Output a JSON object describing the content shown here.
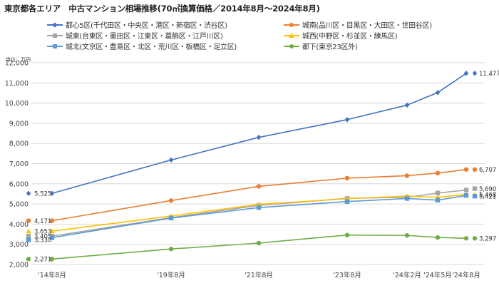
{
  "title": "東京都各エリア　中古マンション相場推移(70㎡換算価格／2014年8月～2024年8月)",
  "unit_label": "単位：万円",
  "colors": {
    "grid": "#d9d9d9",
    "axis": "#bfbfbf"
  },
  "chart_data": {
    "type": "line",
    "title": "東京都各エリア　中古マンション相場推移(70㎡換算価格／2014年8月～2024年8月)",
    "ylabel": "単位：万円",
    "ylim": [
      2000,
      12000
    ],
    "yticks": [
      2000,
      3000,
      4000,
      5000,
      6000,
      7000,
      8000,
      9000,
      10000,
      11000,
      12000
    ],
    "ytick_labels": [
      "2,000",
      "3,000",
      "4,000",
      "5,000",
      "6,000",
      "7,000",
      "8,000",
      "9,000",
      "10,000",
      "11,000",
      "12,000"
    ],
    "x": [
      "2014-08",
      "2019-08",
      "2021-08",
      "2023-08",
      "2024-02",
      "2024-05",
      "2024-08"
    ],
    "x_tick_labels": [
      "'14年8月",
      "'19年8月",
      "'21年8月",
      "'23年8月",
      "'24年2月",
      "'24年5月",
      "'24年8月"
    ],
    "grid": true,
    "legend_position": "top",
    "series": [
      {
        "name": "都心5区(千代田区・中央区・港区・新宿区・渋谷区)",
        "color": "#4472c4",
        "marker": "diamond",
        "values": [
          5525,
          7180,
          8300,
          9180,
          9900,
          10520,
          11477
        ],
        "start_label": "5,525",
        "end_label": "11,477"
      },
      {
        "name": "城南(品川区・目黒区・大田区・世田谷区)",
        "color": "#ed7d31",
        "marker": "circle",
        "values": [
          4171,
          5170,
          5870,
          6280,
          6400,
          6530,
          6707
        ],
        "start_label": "4,171",
        "end_label": "6,707"
      },
      {
        "name": "城東(台東区・墨田区・江東区・葛飾区・江戸川区)",
        "color": "#a5a5a5",
        "marker": "square",
        "values": [
          3405,
          4320,
          4930,
          5280,
          5330,
          5540,
          5690
        ],
        "start_label": "3,405",
        "end_label": "5,690"
      },
      {
        "name": "城西(中野区・杉並区・練馬区)",
        "color": "#ffc000",
        "marker": "triangle",
        "values": [
          3653,
          4400,
          4980,
          5260,
          5390,
          5330,
          5468
        ],
        "start_label": "3,653",
        "end_label": "5,468"
      },
      {
        "name": "城北(文京区・豊島区・北区・荒川区・板橋区・足立区)",
        "color": "#5b9bd5",
        "marker": "square",
        "values": [
          3330,
          4300,
          4820,
          5120,
          5270,
          5190,
          5421
        ],
        "start_label": "3,330",
        "end_label": "5,421"
      },
      {
        "name": "都下(東京23区外)",
        "color": "#70ad47",
        "marker": "circle",
        "values": [
          2271,
          2770,
          3060,
          3460,
          3440,
          3340,
          3297
        ],
        "start_label": "2,271",
        "end_label": "3,297"
      }
    ]
  }
}
